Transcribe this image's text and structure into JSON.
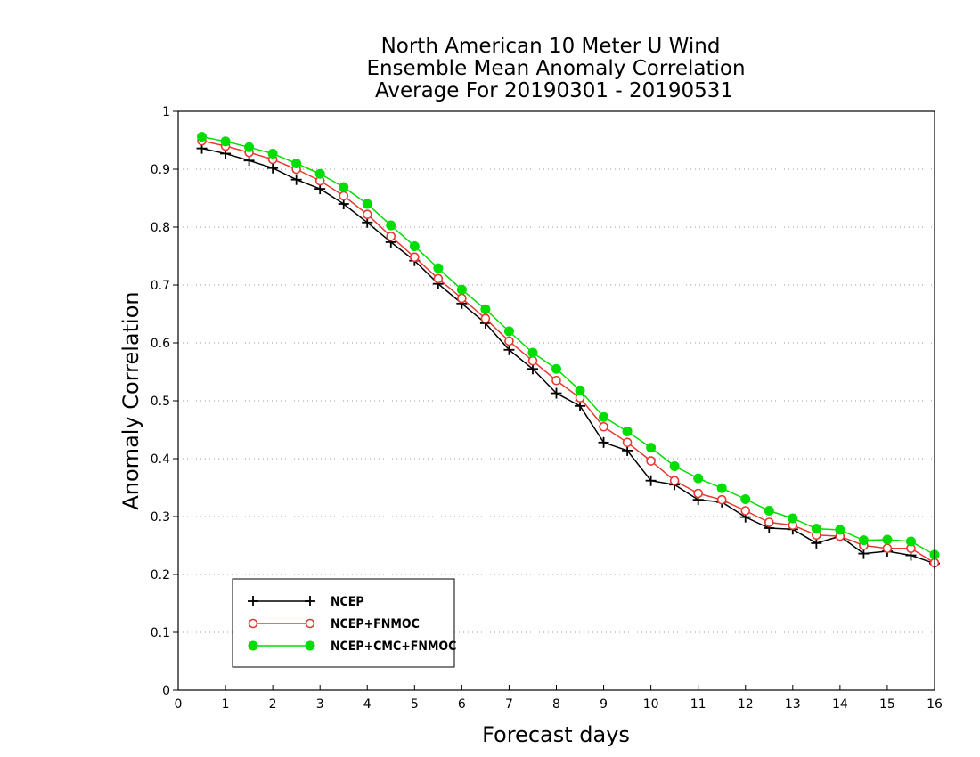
{
  "chart_data": {
    "type": "line",
    "title": [
      "North American 10 Meter U Wind",
      "Ensemble Mean Anomaly Correlation",
      "Average For 20190301 - 20190531"
    ],
    "xlabel": "Forecast days",
    "ylabel": "Anomaly Correlation",
    "xlim": [
      0,
      16
    ],
    "ylim": [
      0,
      1
    ],
    "xticks": [
      "0",
      "1",
      "2",
      "3",
      "4",
      "5",
      "6",
      "7",
      "8",
      "9",
      "10",
      "11",
      "12",
      "13",
      "14",
      "15",
      "16"
    ],
    "yticks": [
      "0",
      "0.1",
      "0.2",
      "0.3",
      "0.4",
      "0.5",
      "0.6",
      "0.7",
      "0.8",
      "0.9",
      "1"
    ],
    "grid": "horizontal dotted",
    "legend_position": "bottom-left",
    "x": [
      0.5,
      1,
      1.5,
      2,
      2.5,
      3,
      3.5,
      4,
      4.5,
      5,
      5.5,
      6,
      6.5,
      7,
      7.5,
      8,
      8.5,
      9,
      9.5,
      10,
      10.5,
      11,
      11.5,
      12,
      12.5,
      13,
      13.5,
      14,
      14.5,
      15,
      15.5,
      16
    ],
    "series": [
      {
        "name": "NCEP",
        "color": "#000000",
        "marker": "plus",
        "values": [
          0.936,
          0.927,
          0.915,
          0.902,
          0.882,
          0.866,
          0.84,
          0.808,
          0.774,
          0.742,
          0.702,
          0.668,
          0.634,
          0.588,
          0.555,
          0.513,
          0.491,
          0.428,
          0.414,
          0.362,
          0.355,
          0.329,
          0.325,
          0.299,
          0.28,
          0.278,
          0.254,
          0.266,
          0.236,
          0.24,
          0.233,
          0.219
        ]
      },
      {
        "name": "NCEP+FNMOC",
        "color": "#e8382f",
        "marker": "open-circle",
        "values": [
          0.949,
          0.94,
          0.929,
          0.917,
          0.9,
          0.88,
          0.854,
          0.822,
          0.784,
          0.748,
          0.711,
          0.677,
          0.642,
          0.603,
          0.569,
          0.535,
          0.505,
          0.455,
          0.428,
          0.396,
          0.362,
          0.34,
          0.329,
          0.31,
          0.29,
          0.285,
          0.268,
          0.266,
          0.25,
          0.245,
          0.245,
          0.22
        ]
      },
      {
        "name": "NCEP+CMC+FNMOC",
        "color": "#00dd00",
        "marker": "filled-circle",
        "values": [
          0.956,
          0.948,
          0.938,
          0.927,
          0.91,
          0.892,
          0.869,
          0.84,
          0.803,
          0.767,
          0.729,
          0.692,
          0.658,
          0.62,
          0.583,
          0.555,
          0.518,
          0.472,
          0.447,
          0.419,
          0.387,
          0.366,
          0.349,
          0.33,
          0.31,
          0.297,
          0.279,
          0.277,
          0.259,
          0.26,
          0.257,
          0.234
        ]
      }
    ]
  }
}
